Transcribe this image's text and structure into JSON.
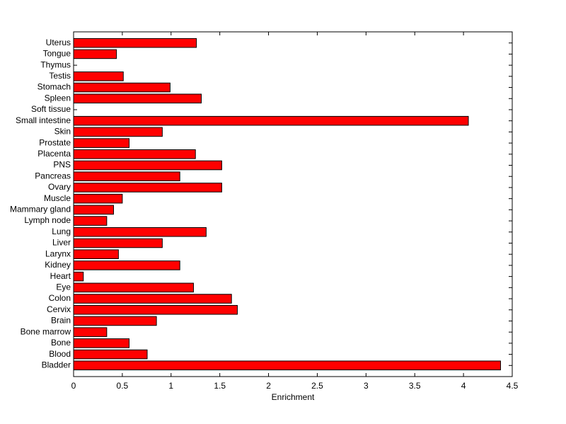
{
  "chart_data": {
    "type": "barh",
    "xlabel": "Enrichment",
    "categories": [
      "Bladder",
      "Blood",
      "Bone",
      "Bone marrow",
      "Brain",
      "Cervix",
      "Colon",
      "Eye",
      "Heart",
      "Kidney",
      "Larynx",
      "Liver",
      "Lung",
      "Lymph node",
      "Mammary gland",
      "Muscle",
      "Ovary",
      "Pancreas",
      "PNS",
      "Placenta",
      "Prostate",
      "Skin",
      "Small intestine",
      "Soft tissue",
      "Spleen",
      "Stomach",
      "Testis",
      "Thymus",
      "Tongue",
      "Uterus"
    ],
    "values": [
      4.38,
      0.755,
      0.57,
      0.34,
      0.85,
      1.68,
      1.62,
      1.23,
      0.1,
      1.09,
      0.46,
      0.91,
      1.36,
      0.34,
      0.41,
      0.5,
      1.52,
      1.09,
      1.52,
      1.25,
      0.57,
      0.91,
      4.05,
      0,
      1.31,
      0.99,
      0.51,
      0,
      0.44,
      1.26
    ],
    "color": "#ff0000",
    "xlim": [
      0,
      4.5
    ],
    "xticks": [
      0,
      0.5,
      1,
      1.5,
      2,
      2.5,
      3,
      3.5,
      4,
      4.5
    ]
  }
}
